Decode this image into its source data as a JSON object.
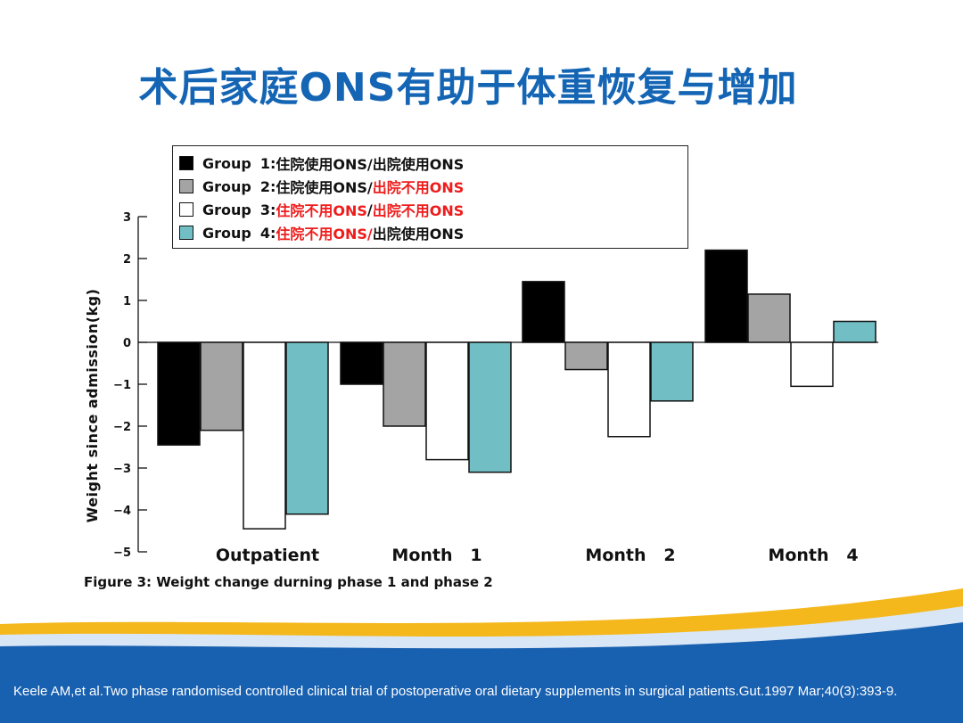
{
  "slide": {
    "title": "术后家庭ONS有助于体重恢复与增加",
    "caption": "Figure 3: Weight change durning phase 1 and phase 2",
    "citation": "Keele AM,et al.Two phase randomised controlled clinical trial of postoperative oral dietary supplements in surgical patients.Gut.1997 Mar;40(3):393-9.",
    "colors": {
      "title": "#1565b5",
      "red_text": "#ee1c1c",
      "footer_blue": "#1860b0",
      "footer_gold": "#f5b81c"
    }
  },
  "legend": [
    {
      "name": "Group",
      "num": "1:",
      "parts": [
        {
          "text": " 住院使用ONS/出院使用ONS",
          "red": false
        }
      ]
    },
    {
      "name": "Group",
      "num": "2:",
      "parts": [
        {
          "text": "住院使用ONS/",
          "red": false
        },
        {
          "text": "出院不用ONS",
          "red": true
        }
      ]
    },
    {
      "name": "Group",
      "num": "3:",
      "parts": [
        {
          "text": "住院不用ONS",
          "red": true
        },
        {
          "text": "/",
          "red": false
        },
        {
          "text": "出院不用ONS",
          "red": true
        }
      ]
    },
    {
      "name": "Group",
      "num": "4:",
      "parts": [
        {
          "text": "住院不用ONS/",
          "red": true
        },
        {
          "text": "出院使用ONS",
          "red": false
        }
      ]
    }
  ],
  "chart_data": {
    "type": "bar",
    "title": "Figure 3: Weight change durning phase 1 and phase 2",
    "xlabel": "",
    "ylabel": "Weight since admission(kg)",
    "ylim": [
      -5,
      3
    ],
    "yticks": [
      "-5",
      "-4",
      "-3",
      "-2",
      "-1",
      "0",
      "1",
      "2",
      "3"
    ],
    "grid": false,
    "legend_position": "top",
    "categories": [
      "Outpatient",
      "Month   1",
      "Month   2",
      "Month   4"
    ],
    "series": [
      {
        "name": "Group 1",
        "color": "#000000",
        "values": [
          -2.45,
          -1.0,
          1.45,
          2.2
        ]
      },
      {
        "name": "Group 2",
        "color": "#a4a4a4",
        "values": [
          -2.1,
          -2.0,
          -0.65,
          1.15
        ]
      },
      {
        "name": "Group 3",
        "color": "#ffffff",
        "values": [
          -4.45,
          -2.8,
          -2.25,
          -1.05
        ]
      },
      {
        "name": "Group 4",
        "color": "#71bfc5",
        "values": [
          -4.1,
          -3.1,
          -1.4,
          0.5
        ]
      }
    ]
  }
}
